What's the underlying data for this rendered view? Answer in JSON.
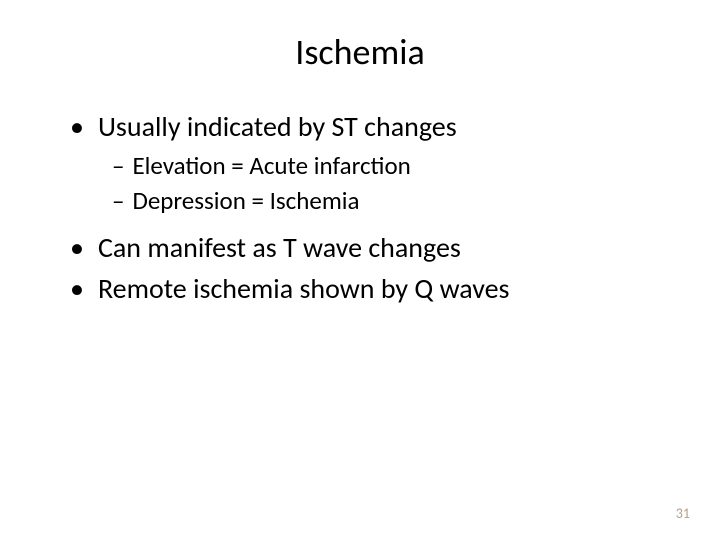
{
  "slide": {
    "title": "Ischemia",
    "bullets": [
      {
        "text": "Usually indicated by ST changes",
        "sub": [
          "Elevation = Acute infarction",
          "Depression = Ischemia"
        ]
      },
      {
        "text": "Can manifest as T wave changes",
        "sub": []
      },
      {
        "text": "Remote ischemia shown by Q waves",
        "sub": []
      }
    ],
    "page_number": "31"
  },
  "style": {
    "background_color": "#ffffff",
    "title_fontsize": 36,
    "title_color": "#000000",
    "bullet1_fontsize": 28,
    "bullet1_color": "#000000",
    "bullet1_marker": "•",
    "bullet2_fontsize": 25,
    "bullet2_color": "#000000",
    "bullet2_marker": "–",
    "page_number_color": "#b8a080",
    "page_number_fontsize": 14,
    "font_family": "Calibri"
  }
}
